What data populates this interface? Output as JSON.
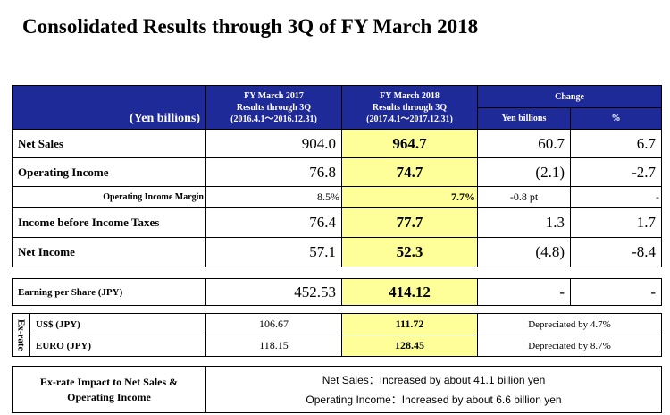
{
  "title": "Consolidated Results through 3Q of FY March 2018",
  "header": {
    "unit_label": "(Yen billions)",
    "col_fy2017_title": "FY March 2017",
    "col_fy2017_sub": "Results through 3Q",
    "col_fy2017_period": "(2016.4.1～2016.12.31)",
    "col_fy2018_title": "FY March 2018",
    "col_fy2018_sub": "Results through 3Q",
    "col_fy2018_period": "(2017.4.1～2017.12.31)",
    "change_label": "Change",
    "change_yen": "Yen billions",
    "change_pct": "%"
  },
  "rows": {
    "net_sales": {
      "label": "Net Sales",
      "fy2017": "904.0",
      "fy2018": "964.7",
      "change": "60.7",
      "pct": "6.7"
    },
    "operating_income": {
      "label": "Operating Income",
      "fy2017": "76.8",
      "fy2018": "74.7",
      "change": "(2.1)",
      "pct": "-2.7"
    },
    "operating_margin": {
      "label": "Operating Income Margin",
      "fy2017": "8.5%",
      "fy2018": "7.7%",
      "change": "-0.8 pt",
      "pct": "-"
    },
    "income_before_tax": {
      "label": "Income before Income Taxes",
      "fy2017": "76.4",
      "fy2018": "77.7",
      "change": "1.3",
      "pct": "1.7"
    },
    "net_income": {
      "label": "Net Income",
      "fy2017": "57.1",
      "fy2018": "52.3",
      "change": "(4.8)",
      "pct": "-8.4"
    }
  },
  "eps": {
    "label": "Earning per Share (JPY)",
    "fy2017": "452.53",
    "fy2018": "414.12",
    "change": "-",
    "pct": "-"
  },
  "exrate": {
    "side_label": "Ex-rate",
    "usd": {
      "label": "US$ (JPY)",
      "fy2017": "106.67",
      "fy2018": "111.72",
      "note": "Depreciated by 4.7%"
    },
    "euro": {
      "label": "EURO (JPY)",
      "fy2017": "118.15",
      "fy2018": "128.45",
      "note": "Depreciated by 8.7%"
    }
  },
  "impact": {
    "label": "Ex-rate Impact to Net Sales & Operating Income",
    "net_sales_text": "Net Sales：Increased by about 41.1 billion yen",
    "op_income_text": "Operating Income：Increased by about 6.6 billion yen"
  },
  "colors": {
    "header_bg": "#1f2a99",
    "highlight": "#ffff99"
  }
}
